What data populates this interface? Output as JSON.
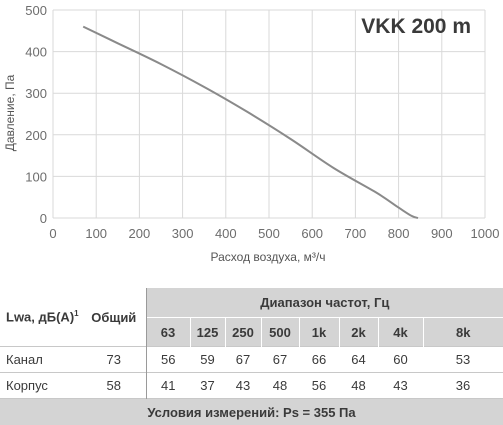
{
  "chart_data": {
    "type": "line",
    "title": "VKK 200 m",
    "xlabel": "Расход воздуха, м³/ч",
    "ylabel": "Давление, Па",
    "xlim": [
      0,
      1000
    ],
    "ylim": [
      0,
      500
    ],
    "x_ticks": [
      "0",
      "100",
      "200",
      "300",
      "400",
      "500",
      "600",
      "700",
      "800",
      "900",
      "1000"
    ],
    "y_ticks": [
      "0",
      "100",
      "200",
      "300",
      "400",
      "500"
    ],
    "grid": true,
    "series": [
      {
        "x": [
          70,
          150,
          250,
          350,
          450,
          550,
          650,
          750,
          800,
          830,
          845
        ],
        "y": [
          460,
          420,
          370,
          315,
          255,
          190,
          120,
          60,
          25,
          5,
          0
        ],
        "color": "#8a8a8a"
      }
    ]
  },
  "table": {
    "corner_label": "Lwa, дБ(А)",
    "corner_sup": "1",
    "total_header": "Общий",
    "group_header": "Диапазон частот, Гц",
    "bands": [
      "63",
      "125",
      "250",
      "500",
      "1k",
      "2k",
      "4k",
      "8k"
    ],
    "rows": [
      {
        "label": "Канал",
        "total": "73",
        "values": [
          "56",
          "59",
          "67",
          "67",
          "66",
          "64",
          "60",
          "53"
        ]
      },
      {
        "label": "Корпус",
        "total": "58",
        "values": [
          "41",
          "37",
          "43",
          "48",
          "56",
          "48",
          "43",
          "36"
        ]
      }
    ],
    "footer": "Условия измерений: Ps = 355 Па"
  },
  "colors": {
    "curve": "#8a8a8a",
    "grid": "#d9d9d9",
    "header_fill": "#d4d4d4",
    "text": "#3a3a3a"
  }
}
